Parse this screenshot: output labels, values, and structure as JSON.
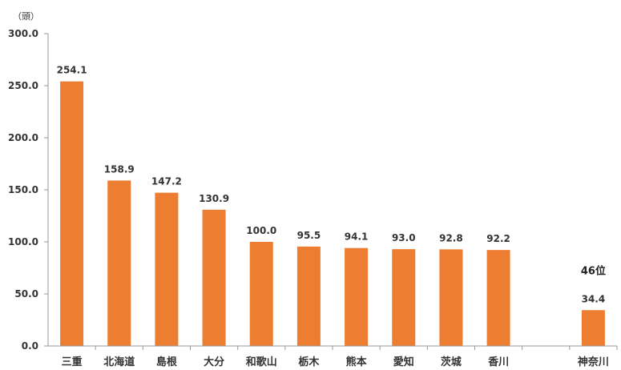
{
  "chart_data": {
    "type": "bar",
    "unit": "（頭）",
    "categories": [
      "三重",
      "北海道",
      "島根",
      "大分",
      "和歌山",
      "栃木",
      "熊本",
      "愛知",
      "茨城",
      "香川",
      "",
      "神奈川"
    ],
    "values": [
      254.1,
      158.9,
      147.2,
      130.9,
      100.0,
      95.5,
      94.1,
      93.0,
      92.8,
      92.2,
      null,
      34.4
    ],
    "data_labels": [
      "254.1",
      "158.9",
      "147.2",
      "130.9",
      "100.0",
      "95.5",
      "94.1",
      "93.0",
      "92.8",
      "92.2",
      "",
      "34.4"
    ],
    "annotations": [
      {
        "category_index": 11,
        "text": "46位"
      }
    ],
    "ylim": [
      0,
      300
    ],
    "yticks": [
      "0.0",
      "50.0",
      "100.0",
      "150.0",
      "200.0",
      "250.0",
      "300.0"
    ],
    "ytick_values": [
      0,
      50,
      100,
      150,
      200,
      250,
      300
    ],
    "title": "",
    "xlabel": "",
    "ylabel": "",
    "grid": false,
    "legend": "none",
    "colors": {
      "bar": "#ED7D31",
      "axis": "#999999",
      "text": "#333333"
    }
  }
}
